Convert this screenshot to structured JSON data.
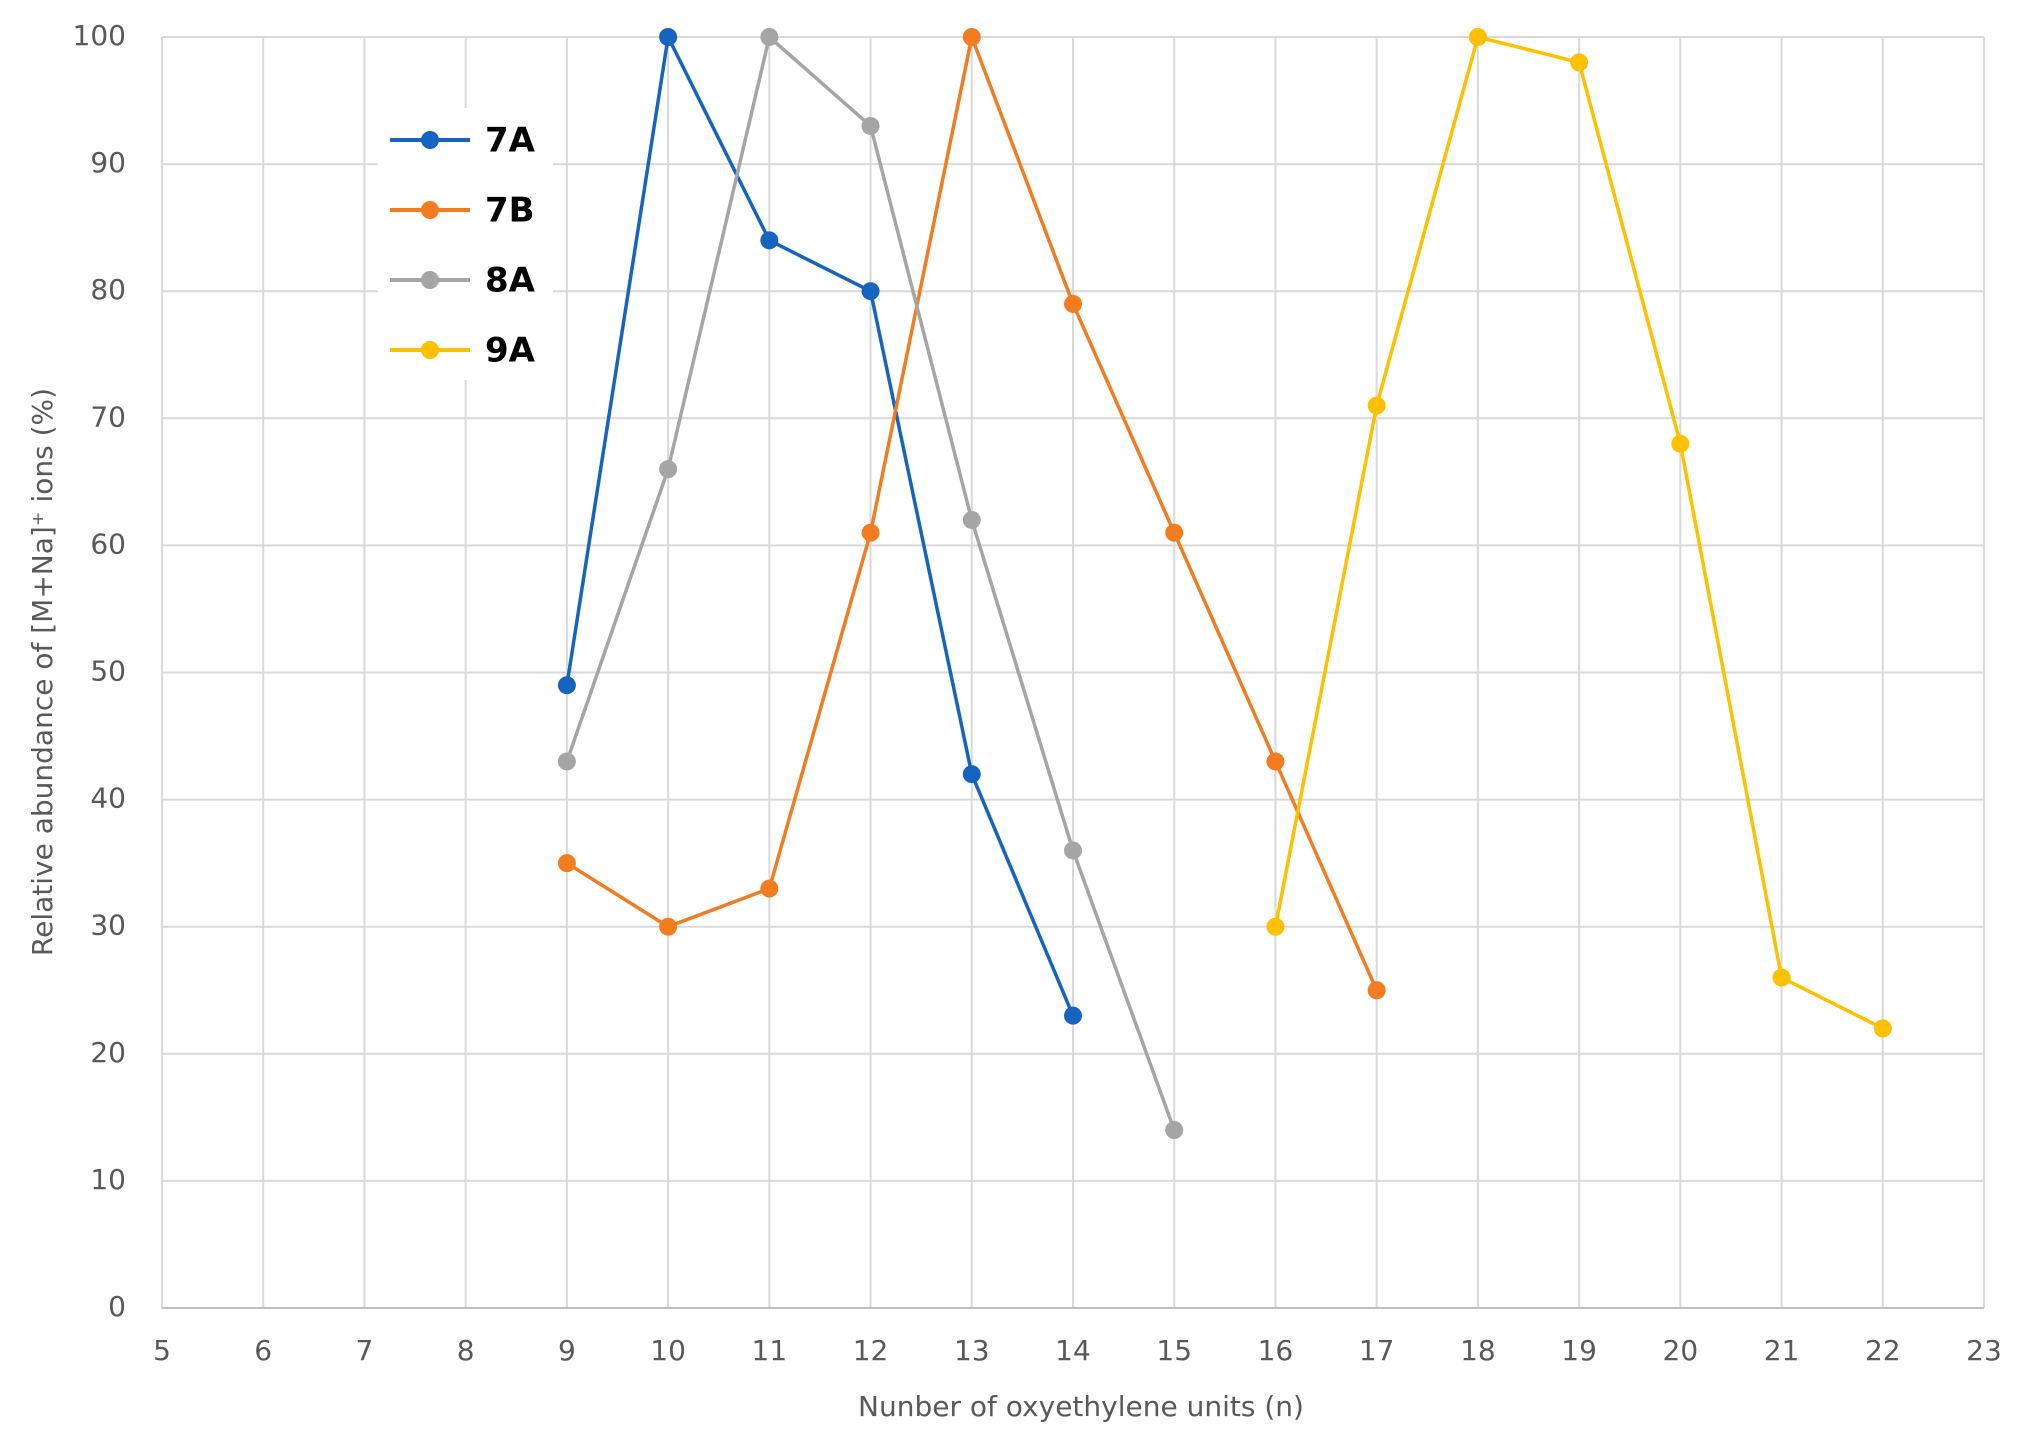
{
  "chart_data": {
    "type": "line",
    "x_label": "Nunber of oxyethylene units (n)",
    "y_label": "Relative abundance of [M+Na]⁺ ions (%)",
    "xlim": [
      5,
      23
    ],
    "xticks": [
      5,
      6,
      7,
      8,
      9,
      10,
      11,
      12,
      13,
      14,
      15,
      16,
      17,
      18,
      19,
      20,
      21,
      22,
      23
    ],
    "ylim": [
      0,
      100
    ],
    "yticks": [
      0,
      10,
      20,
      30,
      40,
      50,
      60,
      70,
      80,
      90,
      100
    ],
    "grid": true,
    "legend": "upper left",
    "series": [
      {
        "name": "7A",
        "color": "#1565c0",
        "x": [
          9,
          10,
          11,
          12,
          13,
          14
        ],
        "values": [
          49,
          100,
          84,
          80,
          42,
          23
        ]
      },
      {
        "name": "7B",
        "color": "#f47c20",
        "x": [
          9,
          10,
          11,
          12,
          13,
          14,
          15,
          16,
          17
        ],
        "values": [
          35,
          30,
          33,
          61,
          100,
          79,
          61,
          43,
          25
        ]
      },
      {
        "name": "8A",
        "color": "#a5a5a5",
        "x": [
          9,
          10,
          11,
          12,
          13,
          14,
          15
        ],
        "values": [
          43,
          66,
          100,
          93,
          62,
          36,
          14
        ]
      },
      {
        "name": "9A",
        "color": "#ffc000",
        "x": [
          16,
          17,
          18,
          19,
          20,
          21,
          22
        ],
        "values": [
          30,
          71,
          100,
          98,
          68,
          26,
          22
        ]
      }
    ]
  }
}
